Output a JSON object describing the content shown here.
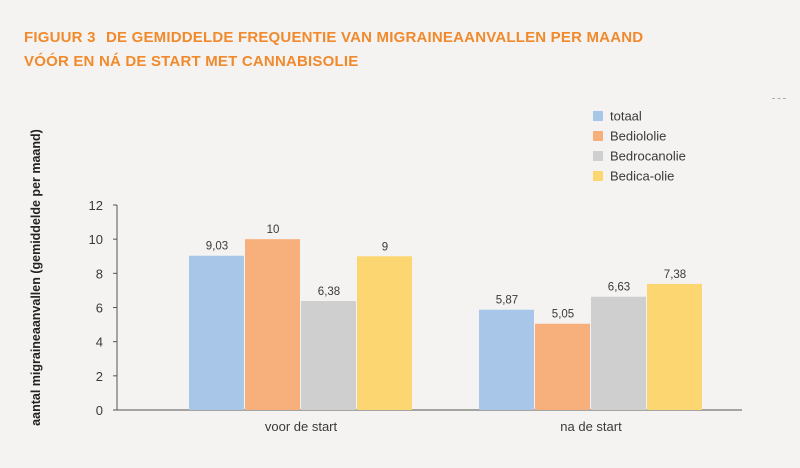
{
  "header": {
    "figure_label": "FIGUUR 3",
    "title_line1": "DE GEMIDDELDE FREQUENTIE VAN MIGRAINEAANVALLEN PER MAAND",
    "title_line2": "VÓÓR EN NÁ DE START MET CANNABISOLIE"
  },
  "colors": {
    "title": "#f08a2c",
    "background": "#f4f3f1"
  },
  "chart_data": {
    "type": "bar",
    "ylabel": "aantal migraineaanvallen (gemiddelde per maand)",
    "xlabel": "",
    "ylim": [
      0,
      12
    ],
    "yticks": [
      "0",
      "2",
      "4",
      "6",
      "8",
      "10",
      "12"
    ],
    "grid": false,
    "legend_position": "top-right",
    "categories": [
      "voor de start",
      "na de start"
    ],
    "series": [
      {
        "name": "totaal",
        "color": "#a7c6e8",
        "values": [
          9.03,
          5.87
        ],
        "labels": [
          "9,03",
          "5,87"
        ]
      },
      {
        "name": "Bediololie",
        "color": "#f7b07c",
        "values": [
          10,
          5.05
        ],
        "labels": [
          "10",
          "5,05"
        ]
      },
      {
        "name": "Bedrocanolie",
        "color": "#cfcfcf",
        "values": [
          6.38,
          6.63
        ],
        "labels": [
          "6,38",
          "6,63"
        ]
      },
      {
        "name": "Bedica-olie",
        "color": "#fcd671",
        "values": [
          9,
          7.38
        ],
        "labels": [
          "9",
          "7,38"
        ]
      }
    ]
  }
}
